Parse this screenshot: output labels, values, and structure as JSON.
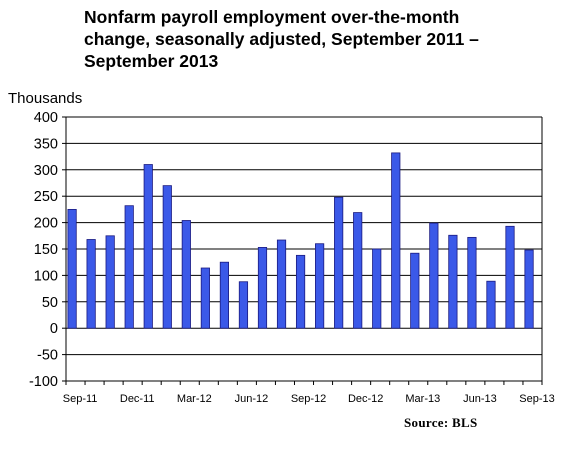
{
  "chart_data": {
    "type": "bar",
    "title_lines": [
      "Nonfarm payroll employment over-the-month",
      "change, seasonally adjusted, September 2011 –",
      "September 2013"
    ],
    "ylabel": "Thousands",
    "ylim": [
      -100,
      400
    ],
    "yticks": [
      400,
      350,
      300,
      250,
      200,
      150,
      100,
      50,
      0,
      -50,
      -100
    ],
    "ytick_labels": [
      "400",
      "350",
      "300",
      "250",
      "200",
      "150",
      "100",
      "50",
      "0",
      "-50",
      "-100"
    ],
    "xtick_labels": [
      "Sep-11",
      "Dec-11",
      "Mar-12",
      "Jun-12",
      "Sep-12",
      "Dec-12",
      "Mar-13",
      "Jun-13",
      "Sep-13"
    ],
    "xtick_every": 3,
    "categories": [
      "Sep-11",
      "Oct-11",
      "Nov-11",
      "Dec-11",
      "Jan-12",
      "Feb-12",
      "Mar-12",
      "Apr-12",
      "May-12",
      "Jun-12",
      "Jul-12",
      "Aug-12",
      "Sep-12",
      "Oct-12",
      "Nov-12",
      "Dec-12",
      "Jan-13",
      "Feb-13",
      "Mar-13",
      "Apr-13",
      "May-13",
      "Jun-13",
      "Jul-13",
      "Aug-13",
      "Sep-13"
    ],
    "values": [
      225,
      168,
      175,
      232,
      310,
      270,
      204,
      114,
      125,
      88,
      153,
      167,
      138,
      160,
      248,
      219,
      150,
      332,
      142,
      199,
      176,
      172,
      89,
      193,
      148
    ],
    "grid": true,
    "bar_color": "#3b59e8",
    "bar_edge_color": "#1a1a80",
    "source": "Source:  BLS"
  }
}
